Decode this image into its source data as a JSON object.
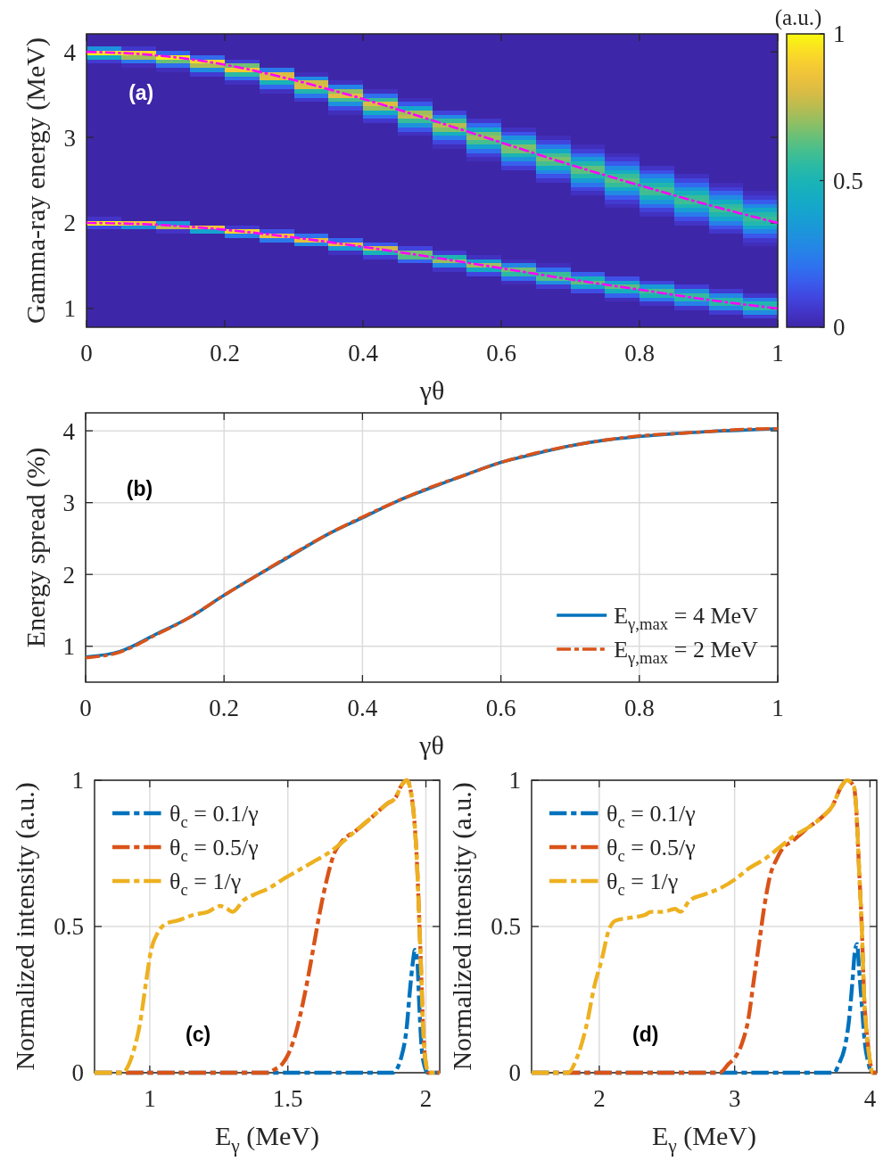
{
  "chart_data": [
    {
      "type": "heatmap",
      "xlabel": "γθ",
      "ylabel": "Gamma-ray energy (MeV)",
      "clabel": "(a.u.)",
      "annotations": [
        "(a)"
      ],
      "x": [
        0.025,
        0.075,
        0.125,
        0.175,
        0.225,
        0.275,
        0.325,
        0.375,
        0.425,
        0.475,
        0.525,
        0.575,
        0.625,
        0.675,
        0.725,
        0.775,
        0.825,
        0.875,
        0.925,
        0.975
      ],
      "cells": [
        [
          0,
          0,
          0,
          0,
          0,
          0,
          0,
          0,
          0,
          0,
          0,
          0,
          0,
          0,
          0,
          0,
          0,
          0,
          0,
          0
        ],
        [
          0,
          0,
          0,
          0,
          0,
          0,
          0,
          0,
          0,
          0,
          0,
          0,
          0,
          0,
          0,
          0,
          0,
          0,
          0,
          0
        ],
        [
          0,
          0,
          0,
          0,
          0,
          0,
          0,
          0,
          0,
          0,
          0,
          0,
          0,
          0,
          0,
          0,
          0,
          0,
          0,
          0
        ],
        [
          0.31,
          0.06,
          0,
          0,
          0,
          0,
          0,
          0,
          0,
          0,
          0,
          0,
          0,
          0,
          0,
          0,
          0,
          0,
          0,
          0
        ],
        [
          0.97,
          0.93,
          0.18,
          0,
          0,
          0,
          0,
          0,
          0,
          0,
          0,
          0,
          0,
          0,
          0,
          0,
          0,
          0,
          0,
          0
        ],
        [
          0.43,
          0.72,
          0.97,
          0.19,
          0,
          0,
          0,
          0,
          0,
          0,
          0,
          0,
          0,
          0,
          0,
          0,
          0,
          0,
          0,
          0
        ],
        [
          0.07,
          0.22,
          0.65,
          0.93,
          0.08,
          0,
          0,
          0,
          0,
          0,
          0,
          0,
          0,
          0,
          0,
          0,
          0,
          0,
          0,
          0
        ],
        [
          0,
          0.03,
          0.2,
          0.74,
          0.66,
          0,
          0,
          0,
          0,
          0,
          0,
          0,
          0,
          0,
          0,
          0,
          0,
          0,
          0,
          0
        ],
        [
          0,
          0,
          0.03,
          0.3,
          0.89,
          0.23,
          0,
          0,
          0,
          0,
          0,
          0,
          0,
          0,
          0,
          0,
          0,
          0,
          0,
          0
        ],
        [
          0,
          0,
          0,
          0.07,
          0.55,
          0.81,
          0.03,
          0,
          0,
          0,
          0,
          0,
          0,
          0,
          0,
          0,
          0,
          0,
          0,
          0
        ],
        [
          0,
          0,
          0,
          0,
          0.2,
          0.82,
          0.29,
          0,
          0,
          0,
          0,
          0,
          0,
          0,
          0,
          0,
          0,
          0,
          0,
          0
        ],
        [
          0,
          0,
          0,
          0,
          0.04,
          0.49,
          0.79,
          0.04,
          0,
          0,
          0,
          0,
          0,
          0,
          0,
          0,
          0,
          0,
          0,
          0
        ],
        [
          0,
          0,
          0,
          0,
          0,
          0.18,
          0.81,
          0.26,
          0,
          0,
          0,
          0,
          0,
          0,
          0,
          0,
          0,
          0,
          0,
          0
        ],
        [
          0,
          0,
          0,
          0,
          0,
          0.04,
          0.52,
          0.7,
          0.04,
          0,
          0,
          0,
          0,
          0,
          0,
          0,
          0,
          0,
          0,
          0
        ],
        [
          0,
          0,
          0,
          0,
          0,
          0,
          0.22,
          0.82,
          0.2,
          0,
          0,
          0,
          0,
          0,
          0,
          0,
          0,
          0,
          0,
          0
        ],
        [
          0,
          0,
          0,
          0,
          0,
          0,
          0.06,
          0.6,
          0.57,
          0.03,
          0,
          0,
          0,
          0,
          0,
          0,
          0,
          0,
          0,
          0
        ],
        [
          0,
          0,
          0,
          0,
          0,
          0,
          0,
          0.31,
          0.81,
          0.14,
          0,
          0,
          0,
          0,
          0,
          0,
          0,
          0,
          0,
          0
        ],
        [
          0,
          0,
          0,
          0,
          0,
          0,
          0,
          0.11,
          0.7,
          0.41,
          0,
          0,
          0,
          0,
          0,
          0,
          0,
          0,
          0,
          0
        ],
        [
          0,
          0,
          0,
          0,
          0,
          0,
          0,
          0.03,
          0.43,
          0.72,
          0.09,
          0,
          0,
          0,
          0,
          0,
          0,
          0,
          0,
          0
        ],
        [
          0,
          0,
          0,
          0,
          0,
          0,
          0,
          0,
          0.2,
          0.76,
          0.28,
          0,
          0,
          0,
          0,
          0,
          0,
          0,
          0,
          0
        ],
        [
          0,
          0,
          0,
          0,
          0,
          0,
          0,
          0,
          0.06,
          0.58,
          0.57,
          0.06,
          0,
          0,
          0,
          0,
          0,
          0,
          0,
          0
        ],
        [
          0,
          0,
          0,
          0,
          0,
          0,
          0,
          0,
          0,
          0.32,
          0.75,
          0.19,
          0,
          0,
          0,
          0,
          0,
          0,
          0,
          0
        ],
        [
          0,
          0,
          0,
          0,
          0,
          0,
          0,
          0,
          0,
          0.14,
          0.68,
          0.42,
          0.04,
          0,
          0,
          0,
          0,
          0,
          0,
          0
        ],
        [
          0,
          0,
          0,
          0,
          0,
          0,
          0,
          0,
          0,
          0.04,
          0.47,
          0.66,
          0.13,
          0,
          0,
          0,
          0,
          0,
          0,
          0
        ],
        [
          0,
          0,
          0,
          0,
          0,
          0,
          0,
          0,
          0,
          0,
          0.25,
          0.71,
          0.31,
          0.03,
          0,
          0,
          0,
          0,
          0,
          0
        ],
        [
          0,
          0,
          0,
          0,
          0,
          0,
          0,
          0,
          0,
          0,
          0.1,
          0.6,
          0.53,
          0.1,
          0,
          0,
          0,
          0,
          0,
          0
        ],
        [
          0,
          0,
          0,
          0,
          0,
          0,
          0,
          0,
          0,
          0,
          0.03,
          0.39,
          0.68,
          0.23,
          0.03,
          0,
          0,
          0,
          0,
          0
        ],
        [
          0,
          0,
          0,
          0,
          0,
          0,
          0,
          0,
          0,
          0,
          0,
          0.2,
          0.66,
          0.43,
          0.08,
          0,
          0,
          0,
          0,
          0
        ],
        [
          0,
          0,
          0,
          0,
          0,
          0,
          0,
          0,
          0,
          0,
          0,
          0.08,
          0.51,
          0.6,
          0.19,
          0.03,
          0,
          0,
          0,
          0
        ],
        [
          0,
          0,
          0,
          0,
          0,
          0,
          0,
          0,
          0,
          0,
          0,
          0.03,
          0.32,
          0.67,
          0.35,
          0.07,
          0,
          0,
          0,
          0
        ],
        [
          0,
          0,
          0,
          0,
          0,
          0,
          0,
          0,
          0,
          0,
          0,
          0,
          0.16,
          0.6,
          0.52,
          0.15,
          0,
          0,
          0,
          0
        ],
        [
          0,
          0,
          0,
          0,
          0,
          0,
          0,
          0,
          0,
          0,
          0,
          0,
          0.07,
          0.44,
          0.64,
          0.29,
          0.05,
          0,
          0,
          0
        ],
        [
          0,
          0,
          0,
          0,
          0,
          0,
          0,
          0,
          0,
          0,
          0,
          0,
          0,
          0.27,
          0.63,
          0.45,
          0.12,
          0,
          0,
          0
        ],
        [
          0,
          0,
          0,
          0,
          0,
          0,
          0,
          0,
          0,
          0,
          0,
          0,
          0,
          0.13,
          0.53,
          0.58,
          0.24,
          0.04,
          0,
          0
        ],
        [
          0,
          0,
          0,
          0,
          0,
          0,
          0,
          0,
          0,
          0,
          0,
          0,
          0,
          0.05,
          0.36,
          0.63,
          0.38,
          0.1,
          0,
          0
        ],
        [
          0,
          0,
          0,
          0,
          0,
          0,
          0,
          0,
          0,
          0,
          0,
          0,
          0,
          0,
          0.21,
          0.57,
          0.52,
          0.19,
          0.03,
          0
        ],
        [
          0,
          0,
          0,
          0,
          0,
          0,
          0,
          0,
          0,
          0,
          0,
          0,
          0,
          0,
          0.1,
          0.43,
          0.6,
          0.33,
          0.08,
          0
        ],
        [
          0,
          0,
          0,
          0,
          0,
          0,
          0,
          0,
          0,
          0,
          0,
          0,
          0,
          0,
          0.04,
          0.28,
          0.59,
          0.48,
          0.17,
          0.03
        ],
        [
          0,
          0,
          0,
          0,
          0,
          0,
          0,
          0,
          0,
          0,
          0,
          0,
          0,
          0,
          0,
          0.15,
          0.48,
          0.58,
          0.29,
          0.07
        ],
        [
          0,
          0,
          0,
          0,
          0,
          0,
          0,
          0,
          0,
          0,
          0,
          0,
          0,
          0,
          0,
          0.07,
          0.33,
          0.59,
          0.44,
          0.15
        ],
        [
          0,
          0,
          0,
          0,
          0,
          0,
          0,
          0,
          0,
          0,
          0,
          0,
          0,
          0,
          0,
          0.03,
          0.19,
          0.51,
          0.56,
          0.28
        ],
        [
          0,
          0,
          0,
          0,
          0,
          0,
          0,
          0,
          0,
          0,
          0,
          0,
          0,
          0,
          0,
          0,
          0.09,
          0.37,
          0.59,
          0.42
        ],
        [
          0,
          0,
          0,
          0,
          0,
          0,
          0,
          0,
          0,
          0,
          0,
          0,
          0,
          0,
          0,
          0,
          0.04,
          0.23,
          0.52,
          0.54
        ],
        [
          0.05,
          0,
          0,
          0,
          0,
          0,
          0,
          0,
          0,
          0,
          0,
          0,
          0,
          0,
          0,
          0,
          0,
          0.12,
          0.4,
          0.58
        ],
        [
          1,
          0.89,
          0.34,
          0,
          0,
          0,
          0,
          0,
          0,
          0,
          0,
          0,
          0,
          0,
          0,
          0,
          0,
          0.05,
          0.25,
          0.53
        ],
        [
          0.11,
          0.32,
          0.76,
          0.87,
          0.07,
          0,
          0,
          0,
          0,
          0,
          0,
          0,
          0,
          0,
          0,
          0,
          0,
          0,
          0.13,
          0.41
        ],
        [
          0,
          0,
          0.05,
          0.39,
          0.92,
          0.14,
          0,
          0,
          0,
          0,
          0,
          0,
          0,
          0,
          0,
          0,
          0,
          0,
          0.06,
          0.26
        ],
        [
          0,
          0,
          0,
          0,
          0.25,
          0.86,
          0.21,
          0,
          0,
          0,
          0,
          0,
          0,
          0,
          0,
          0,
          0,
          0,
          0,
          0.14
        ],
        [
          0,
          0,
          0,
          0,
          0,
          0.23,
          0.84,
          0.18,
          0,
          0,
          0,
          0,
          0,
          0,
          0,
          0,
          0,
          0,
          0,
          0.06
        ],
        [
          0,
          0,
          0,
          0,
          0,
          0,
          0.28,
          0.84,
          0.15,
          0,
          0,
          0,
          0,
          0,
          0,
          0,
          0,
          0,
          0,
          0.03
        ],
        [
          0,
          0,
          0,
          0,
          0,
          0,
          0,
          0.36,
          0.79,
          0.1,
          0,
          0,
          0,
          0,
          0,
          0,
          0,
          0,
          0,
          0
        ],
        [
          0,
          0,
          0,
          0,
          0,
          0,
          0,
          0.04,
          0.49,
          0.67,
          0.07,
          0,
          0,
          0,
          0,
          0,
          0,
          0,
          0,
          0
        ],
        [
          0,
          0,
          0,
          0,
          0,
          0,
          0,
          0,
          0.08,
          0.62,
          0.51,
          0.04,
          0,
          0,
          0,
          0,
          0,
          0,
          0,
          0
        ],
        [
          0,
          0,
          0,
          0,
          0,
          0,
          0,
          0,
          0,
          0.17,
          0.71,
          0.37,
          0.03,
          0,
          0,
          0,
          0,
          0,
          0,
          0
        ],
        [
          0,
          0,
          0,
          0,
          0,
          0,
          0,
          0,
          0,
          0,
          0.29,
          0.72,
          0.27,
          0.03,
          0,
          0,
          0,
          0,
          0,
          0
        ],
        [
          0,
          0,
          0,
          0,
          0,
          0,
          0,
          0,
          0,
          0,
          0.05,
          0.44,
          0.66,
          0.2,
          0,
          0,
          0,
          0,
          0,
          0
        ],
        [
          0,
          0,
          0,
          0,
          0,
          0,
          0,
          0,
          0,
          0,
          0,
          0.1,
          0.55,
          0.58,
          0.16,
          0,
          0,
          0,
          0,
          0
        ],
        [
          0,
          0,
          0,
          0,
          0,
          0,
          0,
          0,
          0,
          0,
          0,
          0,
          0.19,
          0.62,
          0.49,
          0.13,
          0,
          0,
          0,
          0
        ],
        [
          0,
          0,
          0,
          0,
          0,
          0,
          0,
          0,
          0,
          0,
          0,
          0,
          0.03,
          0.3,
          0.64,
          0.41,
          0.1,
          0,
          0,
          0
        ],
        [
          0,
          0,
          0,
          0,
          0,
          0,
          0,
          0,
          0,
          0,
          0,
          0,
          0,
          0.07,
          0.4,
          0.63,
          0.35,
          0.08,
          0,
          0
        ],
        [
          0,
          0,
          0,
          0,
          0,
          0,
          0,
          0,
          0,
          0,
          0,
          0,
          0,
          0,
          0.12,
          0.47,
          0.6,
          0.3,
          0.07,
          0
        ],
        [
          0,
          0,
          0,
          0,
          0,
          0,
          0,
          0,
          0,
          0,
          0,
          0,
          0,
          0,
          0,
          0.17,
          0.5,
          0.57,
          0.27,
          0.06
        ],
        [
          0,
          0,
          0,
          0,
          0,
          0,
          0,
          0,
          0,
          0,
          0,
          0,
          0,
          0,
          0,
          0.03,
          0.22,
          0.53,
          0.54,
          0.24
        ],
        [
          0,
          0,
          0,
          0,
          0,
          0,
          0,
          0,
          0,
          0,
          0,
          0,
          0,
          0,
          0,
          0,
          0.05,
          0.25,
          0.54,
          0.52
        ],
        [
          0,
          0,
          0,
          0,
          0,
          0,
          0,
          0,
          0,
          0,
          0,
          0,
          0,
          0,
          0,
          0,
          0,
          0.06,
          0.28,
          0.55
        ],
        [
          0,
          0,
          0,
          0,
          0,
          0,
          0,
          0,
          0,
          0,
          0,
          0,
          0,
          0,
          0,
          0,
          0,
          0,
          0.07,
          0.29
        ],
        [
          0,
          0,
          0,
          0,
          0,
          0,
          0,
          0,
          0,
          0,
          0,
          0,
          0,
          0,
          0,
          0,
          0,
          0,
          0,
          0.08
        ],
        [
          0,
          0,
          0,
          0,
          0,
          0,
          0,
          0,
          0,
          0,
          0,
          0,
          0,
          0,
          0,
          0,
          0,
          0,
          0,
          0
        ],
        [
          0,
          0,
          0,
          0,
          0,
          0,
          0,
          0,
          0,
          0,
          0,
          0,
          0,
          0,
          0,
          0,
          0,
          0,
          0,
          0
        ]
      ],
      "clim": [
        0,
        1
      ],
      "cticks": [
        0,
        0.5,
        1
      ],
      "xlim": [
        0,
        1
      ],
      "xticks": [
        0,
        0.2,
        0.4,
        0.6,
        0.8,
        1
      ],
      "ylim": [
        0.78,
        4.21
      ],
      "yticks": [
        1,
        2,
        3,
        4
      ],
      "line_style": "dashdot",
      "series": [
        {
          "type": "line",
          "color": "#ff00ff",
          "x": [
            0,
            0.1,
            0.2,
            0.3,
            0.4,
            0.5,
            0.6,
            0.7,
            0.8,
            0.9,
            1
          ],
          "values": [
            4,
            3.96,
            3.85,
            3.67,
            3.45,
            3.2,
            2.94,
            2.68,
            2.44,
            2.21,
            2
          ]
        },
        {
          "type": "line",
          "color": "#ff00ff",
          "x": [
            0,
            0.1,
            0.2,
            0.3,
            0.4,
            0.5,
            0.6,
            0.7,
            0.8,
            0.9,
            1
          ],
          "values": [
            2,
            1.98,
            1.92,
            1.83,
            1.72,
            1.6,
            1.47,
            1.34,
            1.22,
            1.1,
            1
          ]
        }
      ]
    },
    {
      "type": "line",
      "xlabel": "γθ",
      "ylabel": "Energy spread (%)",
      "annotations": [
        "(b)"
      ],
      "x": [
        0,
        0.05,
        0.1,
        0.15,
        0.2,
        0.25,
        0.3,
        0.35,
        0.4,
        0.45,
        0.5,
        0.55,
        0.6,
        0.65,
        0.7,
        0.75,
        0.8,
        0.85,
        0.9,
        0.95,
        1
      ],
      "series": [
        {
          "name": "E$_{γ,max}$ = 4 MeV",
          "color": "#0072bd",
          "line_style": "solid",
          "values": [
            0.85,
            0.93,
            1.16,
            1.4,
            1.71,
            2,
            2.28,
            2.56,
            2.79,
            3.02,
            3.21,
            3.39,
            3.56,
            3.68,
            3.79,
            3.87,
            3.92,
            3.96,
            3.99,
            4.01,
            4.03
          ]
        },
        {
          "name": "E$_{γ,max}$ = 2 MeV",
          "color": "#d95319",
          "line_style": "dashdot",
          "values": [
            0.84,
            0.92,
            1.15,
            1.4,
            1.71,
            2,
            2.29,
            2.56,
            2.8,
            3.02,
            3.22,
            3.39,
            3.56,
            3.69,
            3.79,
            3.87,
            3.93,
            3.96,
            3.99,
            4.02,
            4.03
          ]
        }
      ],
      "xlim": [
        0,
        1
      ],
      "xticks": [
        0,
        0.2,
        0.4,
        0.6,
        0.8,
        1
      ],
      "ylim": [
        0.5,
        4.25
      ],
      "yticks": [
        1,
        2,
        3,
        4
      ],
      "grid": true,
      "legend": "bottom right"
    },
    {
      "type": "line",
      "xlabel": "E$_{γ}$ (MeV)",
      "ylabel": "Normalized intensity (a.u.)",
      "annotations": [
        "(c)"
      ],
      "line_style": "dashdot",
      "series": [
        {
          "name": "θ$_{c}$ = 0.1/γ",
          "color": "#0072bd",
          "x": [
            0.8,
            1.88,
            1.91,
            1.931,
            1.942,
            1.953,
            1.96,
            1.969,
            1.976,
            1.985,
            1.996,
            2.005,
            2.05
          ],
          "values": [
            0,
            0,
            0.05,
            0.16,
            0.28,
            0.38,
            0.42,
            0.38,
            0.23,
            0.08,
            0.02,
            0,
            0
          ]
        },
        {
          "name": "θ$_{c}$ = 0.5/γ",
          "color": "#d95319",
          "x": [
            0.8,
            1.43,
            1.45,
            1.48,
            1.5,
            1.533,
            1.555,
            1.576,
            1.595,
            1.614,
            1.641,
            1.668,
            1.695,
            1.75,
            1.8,
            1.86,
            1.89,
            1.91,
            1.931,
            1.952,
            1.969,
            1.976,
            1.983,
            1.99,
            2,
            2.01,
            2.05
          ],
          "values": [
            0,
            0,
            0.01,
            0.03,
            0.06,
            0.15,
            0.24,
            0.34,
            0.44,
            0.54,
            0.66,
            0.75,
            0.79,
            0.83,
            0.87,
            0.92,
            0.94,
            0.98,
            1,
            0.92,
            0.69,
            0.52,
            0.34,
            0.15,
            0.03,
            0,
            0
          ]
        },
        {
          "name": "θ$_{c}$ = 1/γ",
          "color": "#edb120",
          "x": [
            0.8,
            0.9,
            0.92,
            0.94,
            0.965,
            0.985,
            1.005,
            1.03,
            1.06,
            1.1,
            1.16,
            1.21,
            1.255,
            1.28,
            1.3,
            1.34,
            1.38,
            1.43,
            1.48,
            1.535,
            1.59,
            1.645,
            1.7,
            1.75,
            1.8,
            1.86,
            1.89,
            1.91,
            1.931,
            1.952,
            1.969,
            1.976,
            1.983,
            1.99,
            2,
            2.01,
            2.05
          ],
          "values": [
            0,
            0,
            0.02,
            0.07,
            0.17,
            0.3,
            0.42,
            0.48,
            0.51,
            0.52,
            0.54,
            0.55,
            0.57,
            0.56,
            0.55,
            0.59,
            0.61,
            0.63,
            0.66,
            0.69,
            0.72,
            0.75,
            0.79,
            0.83,
            0.87,
            0.92,
            0.94,
            0.98,
            1,
            0.92,
            0.69,
            0.52,
            0.34,
            0.15,
            0.03,
            0,
            0
          ]
        }
      ],
      "xlim": [
        0.8,
        2.05
      ],
      "xticks": [
        1,
        1.5,
        2
      ],
      "ylim": [
        0,
        1
      ],
      "yticks": [
        0,
        0.5,
        1
      ],
      "grid": true,
      "legend": "top left"
    },
    {
      "type": "line",
      "xlabel": "E$_{γ}$ (MeV)",
      "ylabel": "Normalized intensity (a.u.)",
      "annotations": [
        "(d)"
      ],
      "line_style": "dashdot",
      "series": [
        {
          "name": "θ$_{c}$ = 0.1/γ",
          "color": "#0072bd",
          "x": [
            1.5,
            3.735,
            3.77,
            3.81,
            3.845,
            3.87,
            3.89,
            3.905,
            3.92,
            3.94,
            3.96,
            3.99,
            4.01,
            4.05
          ],
          "values": [
            0,
            0,
            0.03,
            0.08,
            0.18,
            0.31,
            0.42,
            0.44,
            0.35,
            0.23,
            0.11,
            0.03,
            0,
            0
          ]
        },
        {
          "name": "θ$_{c}$ = 0.5/γ",
          "color": "#d95319",
          "x": [
            1.5,
            2.89,
            2.955,
            3,
            3.054,
            3.1,
            3.14,
            3.186,
            3.22,
            3.26,
            3.31,
            3.36,
            3.42,
            3.55,
            3.66,
            3.72,
            3.79,
            3.83,
            3.88,
            3.9,
            3.92,
            3.94,
            3.955,
            3.977,
            4,
            4.02,
            4.05
          ],
          "values": [
            0,
            0,
            0.03,
            0.05,
            0.1,
            0.18,
            0.31,
            0.46,
            0.57,
            0.67,
            0.73,
            0.77,
            0.79,
            0.84,
            0.88,
            0.91,
            0.98,
            1,
            0.98,
            0.89,
            0.69,
            0.49,
            0.28,
            0.13,
            0.04,
            0,
            0
          ]
        },
        {
          "name": "θ$_{c}$ = 1/γ",
          "color": "#edb120",
          "x": [
            1.5,
            1.77,
            1.834,
            1.9,
            1.966,
            2.02,
            2.065,
            2.12,
            2.23,
            2.34,
            2.38,
            2.47,
            2.56,
            2.6,
            2.67,
            2.78,
            2.89,
            3,
            3.11,
            3.22,
            3.33,
            3.44,
            3.55,
            3.66,
            3.72,
            3.79,
            3.83,
            3.88,
            3.9,
            3.92,
            3.94,
            3.955,
            3.977,
            4,
            4.02,
            4.05
          ],
          "values": [
            0,
            0,
            0.05,
            0.15,
            0.3,
            0.39,
            0.48,
            0.52,
            0.53,
            0.54,
            0.55,
            0.55,
            0.56,
            0.55,
            0.59,
            0.61,
            0.63,
            0.66,
            0.7,
            0.73,
            0.77,
            0.81,
            0.84,
            0.88,
            0.91,
            0.98,
            1,
            0.98,
            0.89,
            0.69,
            0.49,
            0.28,
            0.13,
            0.04,
            0,
            0
          ]
        }
      ],
      "xlim": [
        1.5,
        4.05
      ],
      "xticks": [
        2,
        3,
        4
      ],
      "ylim": [
        0,
        1
      ],
      "yticks": [
        0,
        0.5,
        1
      ],
      "grid": true,
      "legend": "top left"
    }
  ]
}
